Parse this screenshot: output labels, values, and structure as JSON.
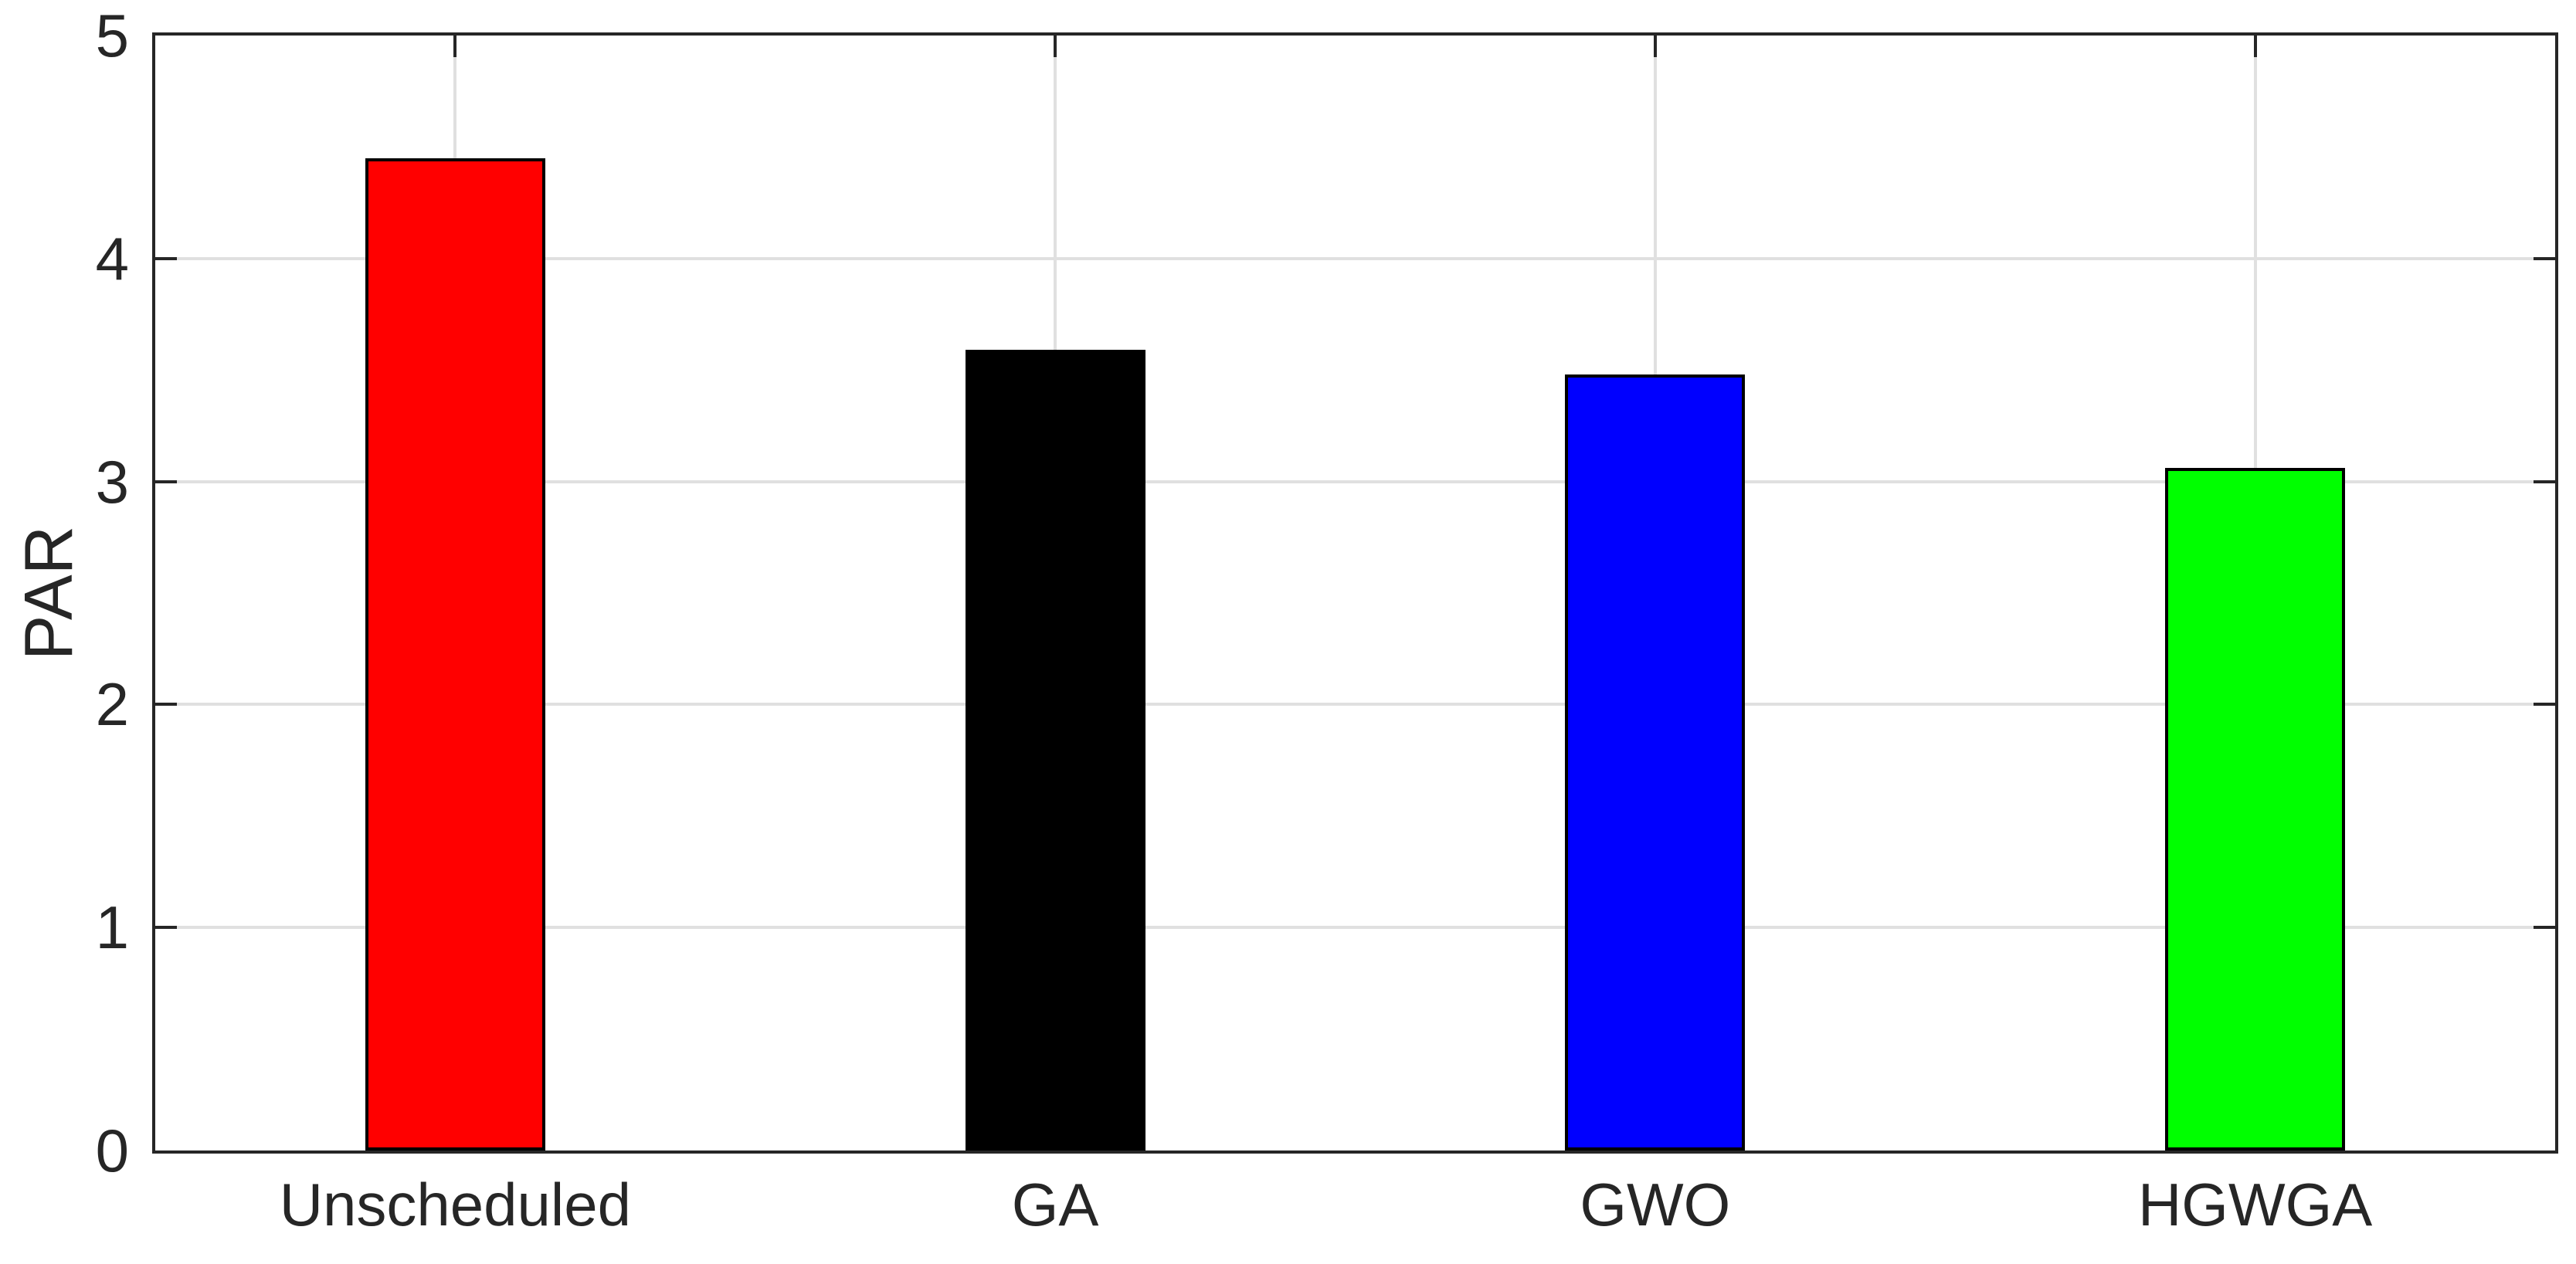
{
  "figure": {
    "background": "#FFFFFF"
  },
  "chart_data": {
    "type": "bar",
    "title": "",
    "xlabel": "",
    "ylabel": "PAR",
    "categories": [
      "Unscheduled",
      "GA",
      "GWO",
      "HGWGA"
    ],
    "values": [
      4.45,
      3.59,
      3.48,
      3.06
    ],
    "series": [
      {
        "name": "PAR",
        "values": [
          4.45,
          3.59,
          3.48,
          3.06
        ]
      }
    ],
    "bar_colors": [
      "#FF0000",
      "#000000",
      "#0000FF",
      "#00FF00"
    ],
    "bar_edge_color": "#000000",
    "bar_width_fraction": 0.3,
    "ylim": [
      0,
      5
    ],
    "yticks": [
      "0",
      "1",
      "2",
      "3",
      "4",
      "5"
    ],
    "grid": true,
    "grid_color": "#E0E0E0",
    "axis_color": "#262626",
    "legend": null
  }
}
